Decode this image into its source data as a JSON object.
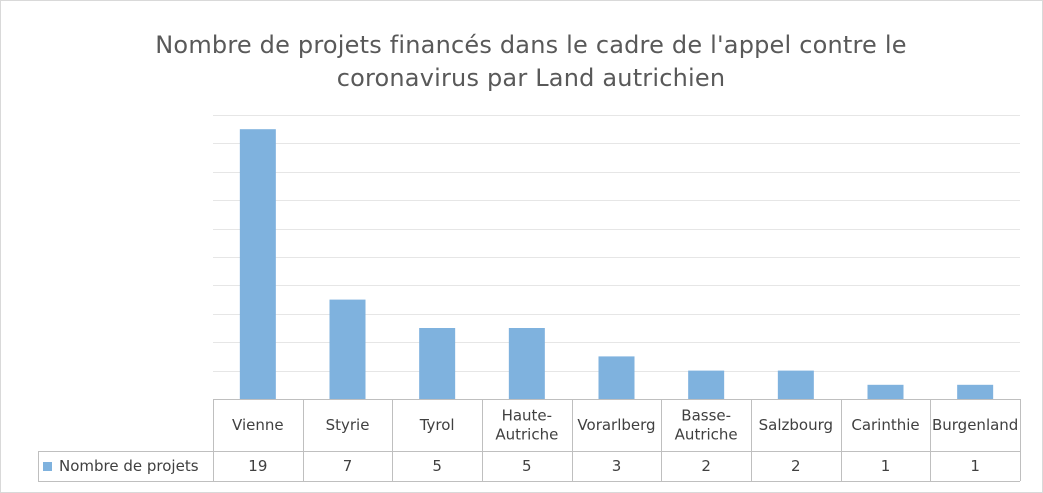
{
  "chart_data": {
    "type": "bar",
    "title": "Nombre de projets financés dans le cadre de l'appel contre le\ncoronavirus par Land autrichien",
    "categories": [
      [
        "Vienne"
      ],
      [
        "Styrie"
      ],
      [
        "Tyrol"
      ],
      [
        "Haute-",
        "Autriche"
      ],
      [
        "Vorarlberg"
      ],
      [
        "Basse-",
        "Autriche"
      ],
      [
        "Salzbourg"
      ],
      [
        "Carinthie"
      ],
      [
        "Burgenland"
      ]
    ],
    "series": [
      {
        "name": "Nombre de projets",
        "values": [
          19,
          7,
          5,
          5,
          3,
          2,
          2,
          1,
          1
        ]
      }
    ],
    "ylim": [
      0,
      20
    ],
    "grid": true,
    "legend": "data-table",
    "bar_color": "#7fb2de",
    "gridline_color": "#e6e6e6",
    "table_border_color": "#bfbfbf"
  }
}
